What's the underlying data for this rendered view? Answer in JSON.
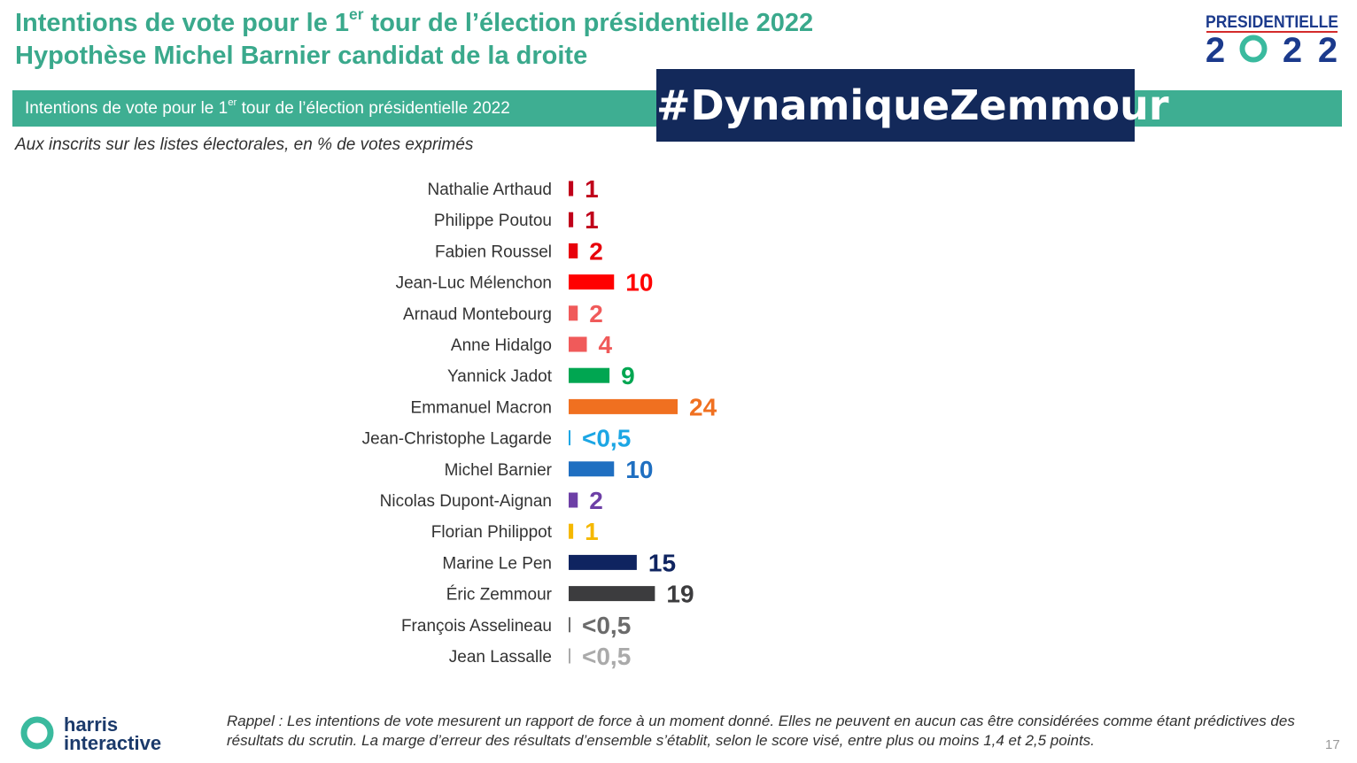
{
  "header": {
    "title_line1_before": "Intentions de vote pour le 1",
    "title_line1_sup": "er",
    "title_line1_after": " tour de l’élection présidentielle 2022",
    "title_line2": "Hypothèse Michel Barnier candidat de la droite"
  },
  "band": {
    "text_before": "Intentions de vote pour le 1",
    "text_sup": "er",
    "text_after": " tour de l’élection présidentielle 2022"
  },
  "hashtag": "#DynamiqueZemmour",
  "subtitle": "Aux inscrits sur les listes électorales, en % de votes exprimés",
  "logo_presidentielle": {
    "word": "PRESIDENTIELLE",
    "year_digits": [
      "2",
      "2",
      "2"
    ],
    "colors": {
      "navy": "#1b3a8c",
      "teal": "#3aba9e",
      "red": "#d42b2b"
    }
  },
  "chart_data": {
    "type": "bar",
    "orientation": "horizontal",
    "categories": [
      "Nathalie Arthaud",
      "Philippe Poutou",
      "Fabien Roussel",
      "Jean-Luc Mélenchon",
      "Arnaud Montebourg",
      "Anne Hidalgo",
      "Yannick Jadot",
      "Emmanuel Macron",
      "Jean-Christophe Lagarde",
      "Michel Barnier",
      "Nicolas Dupont-Aignan",
      "Florian Philippot",
      "Marine Le Pen",
      "Éric Zemmour",
      "François Asselineau",
      "Jean Lassalle"
    ],
    "values": [
      1,
      1,
      2,
      10,
      2,
      4,
      9,
      24,
      0.3,
      10,
      2,
      1,
      15,
      19,
      0.3,
      0.3
    ],
    "value_labels": [
      "1",
      "1",
      "2",
      "10",
      "2",
      "4",
      "9",
      "24",
      "<0,5",
      "10",
      "2",
      "1",
      "15",
      "19",
      "<0,5",
      "<0,5"
    ],
    "colors": [
      "#c0001a",
      "#c0001a",
      "#e8000b",
      "#ff0000",
      "#f05a5a",
      "#f05a5a",
      "#00a651",
      "#f07020",
      "#1ba6e4",
      "#1f6fc1",
      "#6d3fa6",
      "#f5b800",
      "#0f2460",
      "#3c3c3e",
      "#6b6b6b",
      "#aaaaaa"
    ],
    "xlim": [
      0,
      24
    ],
    "grid": false,
    "title": "Intentions de vote pour le 1er tour de l’élection présidentielle 2022"
  },
  "footer": {
    "logo_line1": "harris",
    "logo_line2": "interactive",
    "footnote": "Rappel : Les intentions de vote mesurent un rapport de force à un moment donné. Elles ne peuvent en aucun cas être considérées comme étant prédictives des résultats du scrutin. La marge d’erreur des résultats d’ensemble s’établit, selon le score visé, entre plus ou moins 1,4 et 2,5 points.",
    "page_number": "17"
  }
}
